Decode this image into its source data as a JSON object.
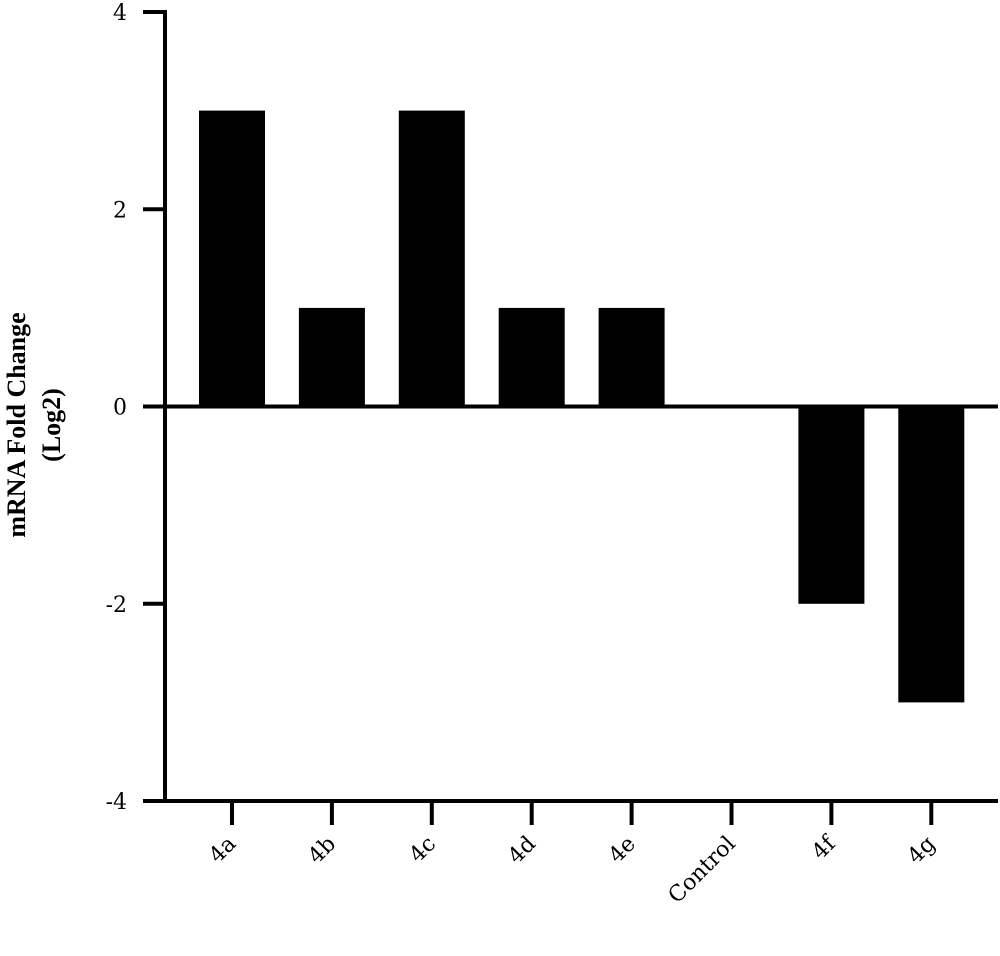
{
  "chart_data": {
    "type": "bar",
    "categories": [
      "4a",
      "4b",
      "4c",
      "4d",
      "4e",
      "Control",
      "4f",
      "4g"
    ],
    "values": [
      3,
      1,
      3,
      1,
      1,
      0,
      -2,
      -3
    ],
    "title": "",
    "xlabel": "",
    "ylabel": [
      "mRNA Fold Change",
      "(Log2)"
    ],
    "ylim": [
      -4,
      4
    ],
    "yticks": [
      4,
      2,
      0,
      -2,
      -4
    ],
    "ytick_labels": [
      "4",
      "2",
      "0",
      "-2",
      "-4"
    ],
    "grid": false,
    "legend": "none",
    "bar_color": "#000000"
  }
}
